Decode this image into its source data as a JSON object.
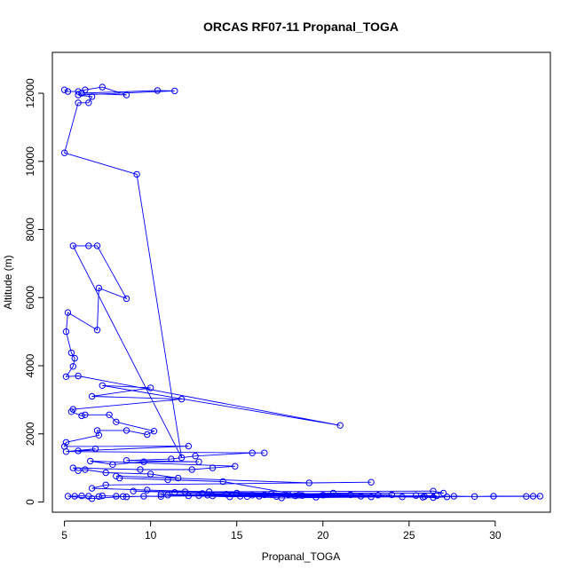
{
  "chart_data": {
    "type": "scatter",
    "title": "ORCAS RF07-11 Propanal_TOGA",
    "xlabel": "Propanal_TOGA",
    "ylabel": "Altitude (m)",
    "xlim": [
      4.3,
      33.2
    ],
    "ylim": [
      -300,
      13200
    ],
    "x_ticks": [
      5,
      10,
      15,
      20,
      25,
      30
    ],
    "y_ticks": [
      0,
      2000,
      4000,
      6000,
      8000,
      10000,
      12000
    ],
    "grid": false,
    "legend": "none",
    "series": [
      {
        "color": "#0000ff",
        "marker": "open-circle",
        "line": true,
        "points": [
          [
            5.0,
            12100
          ],
          [
            5.2,
            12050
          ],
          [
            5.8,
            12050
          ],
          [
            6.2,
            12100
          ],
          [
            7.2,
            12180
          ],
          [
            8.6,
            11950
          ],
          [
            6.0,
            12000
          ],
          [
            10.4,
            12080
          ],
          [
            11.4,
            12070
          ],
          [
            5.8,
            11950
          ],
          [
            6.6,
            11900
          ],
          [
            6.4,
            11720
          ],
          [
            5.8,
            11720
          ],
          [
            5.0,
            10250
          ],
          [
            9.2,
            9620
          ],
          [
            11.8,
            1300
          ],
          [
            5.5,
            7520
          ],
          [
            6.4,
            7520
          ],
          [
            6.9,
            7520
          ],
          [
            8.6,
            5970
          ],
          [
            7.0,
            6280
          ],
          [
            6.9,
            5050
          ],
          [
            5.2,
            5560
          ],
          [
            5.1,
            5000
          ],
          [
            5.4,
            4380
          ],
          [
            5.6,
            4220
          ],
          [
            5.5,
            3980
          ],
          [
            5.1,
            3680
          ],
          [
            5.8,
            3700
          ],
          [
            21.0,
            2250
          ],
          [
            7.2,
            3420
          ],
          [
            10.0,
            3350
          ],
          [
            6.6,
            3100
          ],
          [
            11.8,
            3020
          ],
          [
            5.5,
            2720
          ],
          [
            5.4,
            2650
          ],
          [
            6.0,
            2530
          ],
          [
            6.2,
            2560
          ],
          [
            7.6,
            2560
          ],
          [
            8.0,
            2350
          ],
          [
            10.2,
            2080
          ],
          [
            9.8,
            1980
          ],
          [
            8.6,
            2100
          ],
          [
            6.9,
            2100
          ],
          [
            7.0,
            1960
          ],
          [
            5.1,
            1750
          ],
          [
            5.0,
            1630
          ],
          [
            12.2,
            1640
          ],
          [
            5.8,
            1500
          ],
          [
            6.8,
            1560
          ],
          [
            5.1,
            1480
          ],
          [
            16.6,
            1440
          ],
          [
            15.9,
            1440
          ],
          [
            12.6,
            1350
          ],
          [
            11.2,
            1260
          ],
          [
            8.6,
            1220
          ],
          [
            12.8,
            1180
          ],
          [
            9.6,
            1180
          ],
          [
            7.8,
            1100
          ],
          [
            6.5,
            1200
          ],
          [
            14.9,
            1050
          ],
          [
            13.6,
            1000
          ],
          [
            12.4,
            950
          ],
          [
            9.4,
            950
          ],
          [
            5.5,
            1000
          ],
          [
            5.8,
            920
          ],
          [
            6.2,
            950
          ],
          [
            7.4,
            860
          ],
          [
            10.0,
            820
          ],
          [
            11.6,
            700
          ],
          [
            8.0,
            760
          ],
          [
            19.2,
            560
          ],
          [
            22.8,
            580
          ],
          [
            7.4,
            500
          ],
          [
            6.6,
            400
          ],
          [
            9.8,
            350
          ],
          [
            13.4,
            300
          ],
          [
            26.4,
            320
          ],
          [
            27.0,
            260
          ],
          [
            20.6,
            260
          ],
          [
            18.0,
            220
          ],
          [
            16.3,
            170
          ],
          [
            14.6,
            150
          ],
          [
            12.2,
            180
          ],
          [
            10.6,
            160
          ],
          [
            9.6,
            170
          ],
          [
            8.6,
            150
          ],
          [
            8.0,
            170
          ],
          [
            7.2,
            180
          ],
          [
            7.0,
            160
          ],
          [
            6.4,
            170
          ],
          [
            6.0,
            180
          ],
          [
            5.6,
            170
          ],
          [
            5.2,
            170
          ],
          [
            6.6,
            100
          ],
          [
            8.4,
            160
          ],
          [
            13.6,
            180
          ],
          [
            15.6,
            160
          ],
          [
            17.6,
            120
          ],
          [
            24.6,
            150
          ],
          [
            25.9,
            160
          ],
          [
            27.6,
            170
          ],
          [
            28.8,
            160
          ],
          [
            29.9,
            170
          ],
          [
            32.2,
            170
          ],
          [
            32.6,
            170
          ],
          [
            31.8,
            165
          ],
          [
            22.8,
            150
          ],
          [
            19.6,
            140
          ],
          [
            17.3,
            160
          ],
          [
            15.2,
            170
          ],
          [
            12.8,
            190
          ],
          [
            10.6,
            220
          ],
          [
            25.4,
            190
          ],
          [
            26.6,
            180
          ],
          [
            23.2,
            200
          ],
          [
            20.0,
            200
          ],
          [
            18.4,
            180
          ],
          [
            16.6,
            210
          ],
          [
            14.4,
            230
          ],
          [
            13.0,
            250
          ],
          [
            11.4,
            280
          ],
          [
            9.0,
            320
          ],
          [
            24.0,
            210
          ],
          [
            21.6,
            210
          ],
          [
            17.0,
            240
          ],
          [
            15.0,
            260
          ],
          [
            12.0,
            300
          ],
          [
            18.6,
            200
          ],
          [
            15.9,
            200
          ],
          [
            13.3,
            200
          ],
          [
            11.0,
            200
          ],
          [
            25.8,
            140
          ],
          [
            26.4,
            130
          ],
          [
            27.2,
            150
          ],
          [
            22.2,
            170
          ],
          [
            18.8,
            190
          ],
          [
            14.2,
            600
          ],
          [
            11.0,
            650
          ],
          [
            8.2,
            700
          ]
        ]
      }
    ]
  }
}
